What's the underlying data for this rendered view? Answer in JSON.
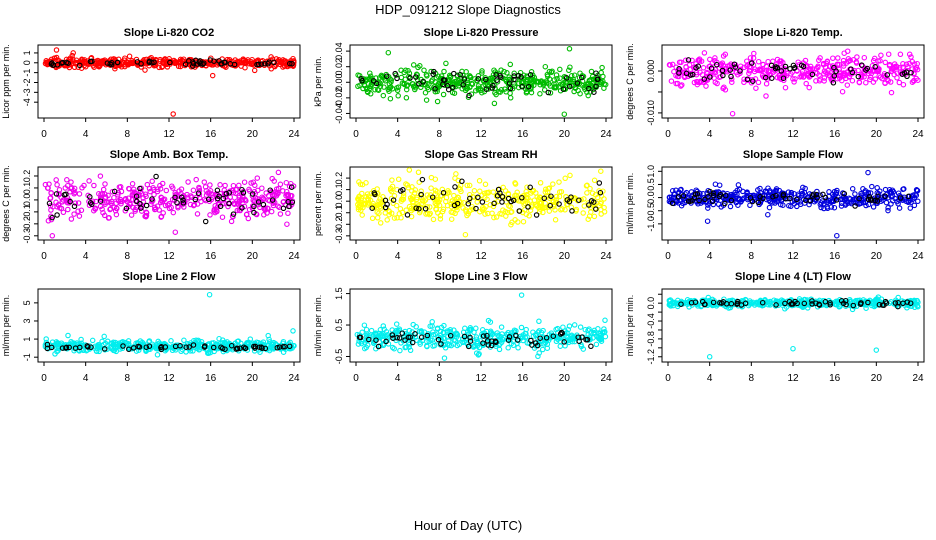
{
  "page": {
    "title": "HDP_091212  Slope Diagnostics",
    "xlabel": "Hour of Day (UTC)"
  },
  "chart_data": [
    {
      "type": "scatter",
      "title": "Slope Li-820 CO2",
      "ylabel": "Licor ppm per min.",
      "color": "#ff0000",
      "xlim": [
        0,
        24
      ],
      "ylim": [
        -5.3,
        1.5
      ],
      "yticks": [
        -4,
        -3,
        -2,
        -1,
        0,
        1
      ],
      "ytick_labels": [
        "-4",
        "-3",
        "-2",
        "-1",
        "0",
        "1"
      ],
      "xticks": [
        0,
        4,
        8,
        12,
        16,
        20,
        24
      ],
      "dense_sd": 0.22,
      "dense_mean": 0.0,
      "black_sd": 0.12,
      "outliers": [
        {
          "x": 1.2,
          "y": 1.3
        },
        {
          "x": 2.8,
          "y": 1.0
        },
        {
          "x": 12.4,
          "y": -5.2
        },
        {
          "x": 16.2,
          "y": -1.3
        },
        {
          "x": 21.8,
          "y": 0.6
        }
      ]
    },
    {
      "type": "scatter",
      "title": "Slope Li-820 Pressure",
      "ylabel": "kPa per min.",
      "color": "#00bb00",
      "xlim": [
        0,
        24
      ],
      "ylim": [
        -0.042,
        0.044
      ],
      "yticks": [
        -0.04,
        -0.02,
        0,
        0.02,
        0.04
      ],
      "ytick_labels": [
        "-0.04",
        "-0.02",
        "0.00",
        "0.02",
        "0.04"
      ],
      "xticks": [
        0,
        4,
        8,
        12,
        16,
        20,
        24
      ],
      "dense_sd": 0.009,
      "dense_mean": 0.0,
      "black_sd": 0.007,
      "outliers": [
        {
          "x": 20.0,
          "y": -0.041
        },
        {
          "x": 20.5,
          "y": 0.043
        },
        {
          "x": 3.1,
          "y": 0.038
        }
      ]
    },
    {
      "type": "scatter",
      "title": "Slope Li-820 Temp.",
      "ylabel": "degrees C per min.",
      "color": "#ff00ff",
      "xlim": [
        0,
        24
      ],
      "ylim": [
        -0.0105,
        0.0055
      ],
      "yticks": [
        -0.01,
        -0.005,
        0
      ],
      "ytick_labels": [
        "-0.010",
        "",
        "0.000"
      ],
      "xticks": [
        0,
        4,
        8,
        12,
        16,
        20,
        24
      ],
      "dense_sd": 0.0018,
      "dense_mean": 0.0,
      "black_sd": 0.0012,
      "outliers": [
        {
          "x": 6.2,
          "y": -0.0102
        },
        {
          "x": 23.2,
          "y": 0.004
        },
        {
          "x": 5.5,
          "y": 0.004
        }
      ]
    },
    {
      "type": "scatter",
      "title": "Slope Amb. Box Temp.",
      "ylabel": "degrees C per min.",
      "color": "#ee00ee",
      "xlim": [
        0,
        24
      ],
      "ylim": [
        -0.31,
        0.25
      ],
      "yticks": [
        -0.3,
        -0.2,
        -0.1,
        0,
        0.1,
        0.2
      ],
      "ytick_labels": [
        "-0.3",
        "-0.2",
        "-0.1",
        "0.0",
        "0.1",
        "0.2"
      ],
      "xticks": [
        0,
        4,
        8,
        12,
        16,
        20,
        24
      ],
      "dense_sd": 0.075,
      "dense_mean": 0.0,
      "black_sd": 0.06,
      "outliers": [
        {
          "x": 0.8,
          "y": -0.3
        },
        {
          "x": 12.6,
          "y": -0.27
        },
        {
          "x": 22.5,
          "y": 0.23
        }
      ]
    },
    {
      "type": "scatter",
      "title": "Slope Gas Stream RH",
      "ylabel": "percent per min.",
      "color": "#ffff00",
      "xlim": [
        0,
        24
      ],
      "ylim": [
        -0.31,
        0.27
      ],
      "yticks": [
        -0.3,
        -0.2,
        -0.1,
        0,
        0.1,
        0.2
      ],
      "ytick_labels": [
        "-0.3",
        "-0.2",
        "-0.1",
        "0.0",
        "0.1",
        "0.2"
      ],
      "xticks": [
        0,
        4,
        8,
        12,
        16,
        20,
        24
      ],
      "dense_sd": 0.085,
      "dense_mean": 0.0,
      "black_sd": 0.07,
      "outliers": [
        {
          "x": 6.0,
          "y": 0.25
        },
        {
          "x": 23.5,
          "y": 0.26
        },
        {
          "x": 10.5,
          "y": -0.29
        }
      ]
    },
    {
      "type": "scatter",
      "title": "Slope Sample Flow",
      "ylabel": "ml/min per min.",
      "color": "#0000dd",
      "xlim": [
        0,
        24
      ],
      "ylim": [
        -1.5,
        1.05
      ],
      "yticks": [
        -1.0,
        -0.5,
        0,
        0.5,
        1.0
      ],
      "ytick_labels": [
        "-1.0",
        "-0.5",
        "0.0",
        "0.5",
        "1.0"
      ],
      "xticks": [
        0,
        4,
        8,
        12,
        16,
        20,
        24
      ],
      "dense_sd": 0.18,
      "dense_mean": 0.0,
      "black_sd": 0.12,
      "outliers": [
        {
          "x": 16.2,
          "y": -1.45
        },
        {
          "x": 19.2,
          "y": 0.95
        },
        {
          "x": 3.8,
          "y": -0.9
        }
      ]
    },
    {
      "type": "scatter",
      "title": "Slope Line 2 Flow",
      "ylabel": "ml/min per min.",
      "color": "#00eeee",
      "xlim": [
        0,
        24
      ],
      "ylim": [
        -1.2,
        6.2
      ],
      "yticks": [
        -1,
        1,
        3,
        5
      ],
      "ytick_labels": [
        "-1",
        "1",
        "3",
        "5"
      ],
      "xticks": [
        0,
        4,
        8,
        12,
        16,
        20,
        24
      ],
      "dense_sd": 0.3,
      "dense_mean": 0.2,
      "black_sd": 0.1,
      "outliers": [
        {
          "x": 15.9,
          "y": 5.9
        },
        {
          "x": 23.9,
          "y": 1.9
        },
        {
          "x": 2.3,
          "y": 1.4
        },
        {
          "x": 19.8,
          "y": 1.0
        }
      ]
    },
    {
      "type": "scatter",
      "title": "Slope Line 3 Flow",
      "ylabel": "ml/min per min.",
      "color": "#00eeee",
      "xlim": [
        0,
        24
      ],
      "ylim": [
        -0.58,
        1.55
      ],
      "yticks": [
        -0.5,
        0.5,
        1.5
      ],
      "ytick_labels": [
        "-0.5",
        "0.5",
        "1.5"
      ],
      "xticks": [
        0,
        4,
        8,
        12,
        16,
        20,
        24
      ],
      "dense_sd": 0.18,
      "dense_mean": 0.1,
      "black_sd": 0.12,
      "outliers": [
        {
          "x": 15.9,
          "y": 1.45
        },
        {
          "x": 23.9,
          "y": 0.65
        },
        {
          "x": 8.5,
          "y": -0.55
        }
      ]
    },
    {
      "type": "scatter",
      "title": "Slope Line 4 (LT) Flow",
      "ylabel": "ml/min per min.",
      "color": "#00eeee",
      "xlim": [
        0,
        24
      ],
      "ylim": [
        -1.25,
        0.25
      ],
      "yticks": [
        -1.2,
        -1.0,
        -0.8,
        -0.6,
        -0.4,
        -0.2,
        0,
        0.2
      ],
      "ytick_labels": [
        "-1.2",
        "",
        "-0.8",
        "",
        "-0.4",
        "",
        "0.0",
        ""
      ],
      "xticks": [
        0,
        4,
        8,
        12,
        16,
        20,
        24
      ],
      "dense_sd": 0.045,
      "dense_mean": 0.0,
      "black_sd": 0.03,
      "outliers": [
        {
          "x": 4.0,
          "y": -1.2
        },
        {
          "x": 12.0,
          "y": -1.02
        },
        {
          "x": 20.0,
          "y": -1.05
        }
      ]
    }
  ]
}
